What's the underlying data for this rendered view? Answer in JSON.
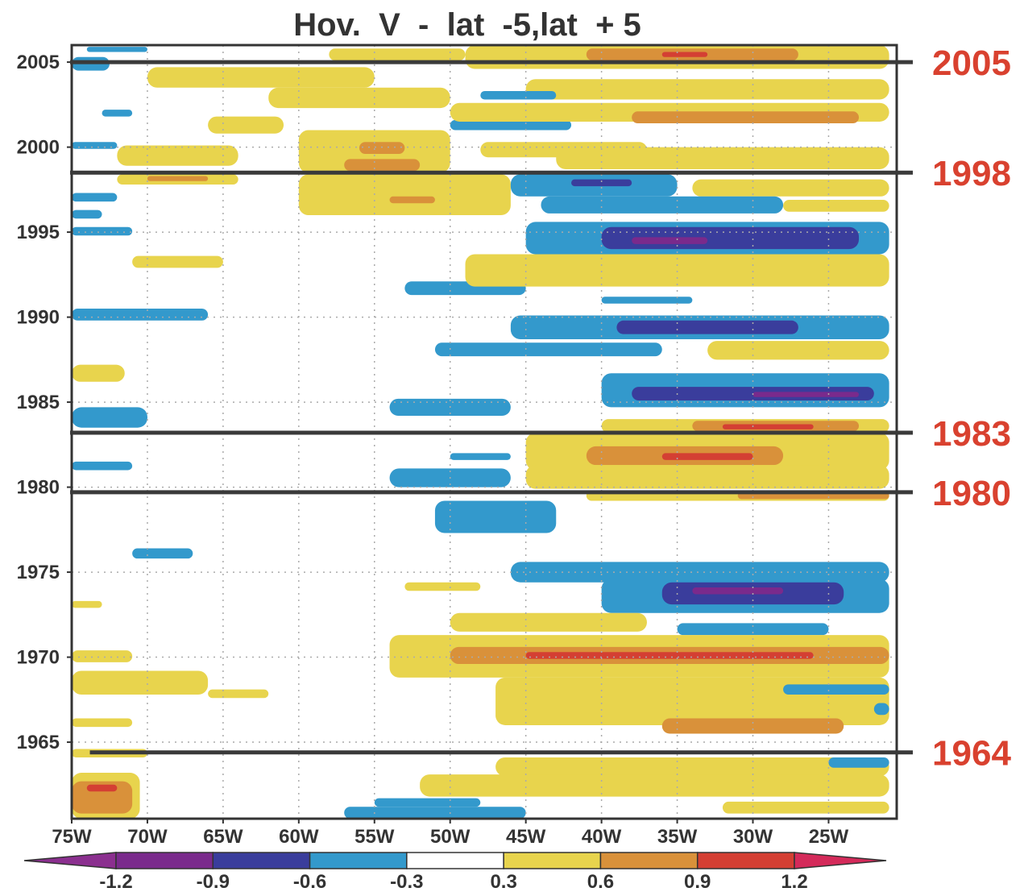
{
  "chart_data": {
    "type": "heatmap",
    "title": "Hov.  V  -  lat  -5,lat  + 5",
    "xlabel": "",
    "ylabel": "",
    "x_range": [
      -75,
      -20.5
    ],
    "y_range": [
      1960.5,
      2006.0
    ],
    "x_ticks": [
      -75,
      -70,
      -65,
      -60,
      -55,
      -50,
      -45,
      -40,
      -35,
      -30,
      -25
    ],
    "x_tick_labels": [
      "75W",
      "70W",
      "65W",
      "60W",
      "55W",
      "50W",
      "45W",
      "40W",
      "35W",
      "30W",
      "25W"
    ],
    "y_ticks": [
      2005,
      2000,
      1995,
      1990,
      1985,
      1980,
      1975,
      1970,
      1965
    ],
    "y_tick_labels": [
      "2005",
      "2000",
      "1995",
      "1990",
      "1985",
      "1980",
      "1975",
      "1970",
      "1965"
    ],
    "grid": true,
    "colorbar": {
      "orientation": "horizontal",
      "placement": "bottom",
      "levels": [
        -1.2,
        -0.9,
        -0.6,
        -0.3,
        0.3,
        0.6,
        0.9,
        1.2
      ],
      "level_labels": [
        "-1.2",
        "-0.9",
        "-0.6",
        "-0.3",
        "0.3",
        "0.6",
        "0.9",
        "1.2"
      ],
      "colors": [
        "#8b2f8f",
        "#7a2a8c",
        "#3a3d9c",
        "#3399cc",
        "#ffffff",
        "#e8d44d",
        "#d9913a",
        "#d43f33",
        "#d42a5a"
      ]
    },
    "marker_years": [
      {
        "year": 2005,
        "label": "2005"
      },
      {
        "year": 1998.5,
        "label": "1998"
      },
      {
        "year": 1983.2,
        "label": "1983"
      },
      {
        "year": 1979.7,
        "label": "1980"
      },
      {
        "year": 1964.4,
        "label": "1964"
      }
    ],
    "marker_color": "#d9412f",
    "regions": [
      {
        "x": [
          -74,
          -70
        ],
        "y": [
          2005.6,
          2005.9
        ],
        "v": -0.45
      },
      {
        "x": [
          -75,
          -72.5
        ],
        "y": [
          2004.5,
          2005.3
        ],
        "v": -0.4
      },
      {
        "x": [
          -58,
          -49
        ],
        "y": [
          2005.1,
          2005.8
        ],
        "v": 0.45
      },
      {
        "x": [
          -49,
          -21
        ],
        "y": [
          2004.6,
          2006.0
        ],
        "v": 0.45
      },
      {
        "x": [
          -41,
          -27
        ],
        "y": [
          2005.1,
          2005.8
        ],
        "v": 0.75
      },
      {
        "x": [
          -36,
          -33
        ],
        "y": [
          2005.3,
          2005.6
        ],
        "v": 1.0
      },
      {
        "x": [
          -70,
          -55
        ],
        "y": [
          2003.5,
          2004.7
        ],
        "v": 0.45
      },
      {
        "x": [
          -62,
          -50
        ],
        "y": [
          2002.3,
          2003.5
        ],
        "v": 0.45
      },
      {
        "x": [
          -45,
          -21
        ],
        "y": [
          2002.8,
          2004.0
        ],
        "v": 0.45
      },
      {
        "x": [
          -48,
          -43
        ],
        "y": [
          2002.8,
          2003.3
        ],
        "v": -0.45
      },
      {
        "x": [
          -73,
          -71
        ],
        "y": [
          2001.8,
          2002.2
        ],
        "v": -0.45
      },
      {
        "x": [
          -66,
          -61
        ],
        "y": [
          2000.8,
          2001.8
        ],
        "v": 0.45
      },
      {
        "x": [
          -50,
          -42
        ],
        "y": [
          2001.0,
          2001.6
        ],
        "v": -0.45
      },
      {
        "x": [
          -50,
          -21
        ],
        "y": [
          2001.5,
          2002.6
        ],
        "v": 0.45
      },
      {
        "x": [
          -38,
          -23
        ],
        "y": [
          2001.4,
          2002.1
        ],
        "v": 0.75
      },
      {
        "x": [
          -75,
          -72
        ],
        "y": [
          1999.9,
          2000.3
        ],
        "v": -0.45
      },
      {
        "x": [
          -72,
          -64
        ],
        "y": [
          1998.9,
          2000.1
        ],
        "v": 0.45
      },
      {
        "x": [
          -60,
          -50
        ],
        "y": [
          1998.5,
          2001.0
        ],
        "v": 0.45
      },
      {
        "x": [
          -56,
          -53
        ],
        "y": [
          1999.6,
          2000.3
        ],
        "v": 0.75
      },
      {
        "x": [
          -57,
          -52
        ],
        "y": [
          1998.6,
          1999.3
        ],
        "v": 0.75
      },
      {
        "x": [
          -48,
          -37
        ],
        "y": [
          1999.4,
          2000.3
        ],
        "v": 0.45
      },
      {
        "x": [
          -43,
          -21
        ],
        "y": [
          1998.7,
          2000.0
        ],
        "v": 0.45
      },
      {
        "x": [
          -72,
          -64
        ],
        "y": [
          1997.8,
          1998.4
        ],
        "v": 0.45
      },
      {
        "x": [
          -70,
          -66
        ],
        "y": [
          1998.0,
          1998.3
        ],
        "v": 0.75
      },
      {
        "x": [
          -60,
          -46
        ],
        "y": [
          1996.0,
          1998.4
        ],
        "v": 0.45
      },
      {
        "x": [
          -54,
          -51
        ],
        "y": [
          1996.7,
          1997.1
        ],
        "v": 0.75
      },
      {
        "x": [
          -75,
          -72
        ],
        "y": [
          1996.8,
          1997.3
        ],
        "v": -0.45
      },
      {
        "x": [
          -75,
          -73
        ],
        "y": [
          1995.8,
          1996.3
        ],
        "v": -0.45
      },
      {
        "x": [
          -75,
          -71
        ],
        "y": [
          1994.8,
          1995.3
        ],
        "v": -0.45
      },
      {
        "x": [
          -46,
          -35
        ],
        "y": [
          1997.1,
          1998.4
        ],
        "v": -0.45
      },
      {
        "x": [
          -42,
          -38
        ],
        "y": [
          1997.7,
          1998.1
        ],
        "v": -0.8
      },
      {
        "x": [
          -34,
          -21
        ],
        "y": [
          1997.1,
          1998.1
        ],
        "v": 0.45
      },
      {
        "x": [
          -44,
          -28
        ],
        "y": [
          1996.1,
          1997.1
        ],
        "v": -0.45
      },
      {
        "x": [
          -28,
          -21
        ],
        "y": [
          1996.2,
          1996.9
        ],
        "v": 0.45
      },
      {
        "x": [
          -45,
          -21
        ],
        "y": [
          1993.7,
          1995.6
        ],
        "v": -0.45
      },
      {
        "x": [
          -40,
          -23
        ],
        "y": [
          1994.0,
          1995.3
        ],
        "v": -0.8
      },
      {
        "x": [
          -38,
          -33
        ],
        "y": [
          1994.3,
          1994.7
        ],
        "v": -1.0
      },
      {
        "x": [
          -71,
          -65
        ],
        "y": [
          1992.9,
          1993.6
        ],
        "v": 0.45
      },
      {
        "x": [
          -53,
          -45
        ],
        "y": [
          1991.3,
          1992.1
        ],
        "v": -0.45
      },
      {
        "x": [
          -49,
          -21
        ],
        "y": [
          1991.8,
          1993.7
        ],
        "v": 0.45
      },
      {
        "x": [
          -40,
          -34
        ],
        "y": [
          1990.8,
          1991.2
        ],
        "v": -0.45
      },
      {
        "x": [
          -75,
          -66
        ],
        "y": [
          1989.8,
          1990.5
        ],
        "v": -0.45
      },
      {
        "x": [
          -46,
          -21
        ],
        "y": [
          1988.7,
          1990.1
        ],
        "v": -0.45
      },
      {
        "x": [
          -39,
          -27
        ],
        "y": [
          1989.0,
          1989.8
        ],
        "v": -0.8
      },
      {
        "x": [
          -51,
          -36
        ],
        "y": [
          1987.7,
          1988.5
        ],
        "v": -0.45
      },
      {
        "x": [
          -33,
          -21
        ],
        "y": [
          1987.5,
          1988.6
        ],
        "v": 0.45
      },
      {
        "x": [
          -75,
          -71.5
        ],
        "y": [
          1986.2,
          1987.2
        ],
        "v": 0.45
      },
      {
        "x": [
          -40,
          -21
        ],
        "y": [
          1984.7,
          1986.7
        ],
        "v": -0.45
      },
      {
        "x": [
          -38,
          -22
        ],
        "y": [
          1985.1,
          1985.9
        ],
        "v": -0.8
      },
      {
        "x": [
          -30,
          -23
        ],
        "y": [
          1985.3,
          1985.6
        ],
        "v": -1.0
      },
      {
        "x": [
          -54,
          -46
        ],
        "y": [
          1984.2,
          1985.2
        ],
        "v": -0.45
      },
      {
        "x": [
          -75,
          -70
        ],
        "y": [
          1983.5,
          1984.7
        ],
        "v": -0.45
      },
      {
        "x": [
          -40,
          -21
        ],
        "y": [
          1983.2,
          1984.0
        ],
        "v": 0.45
      },
      {
        "x": [
          -34,
          -23
        ],
        "y": [
          1983.3,
          1983.9
        ],
        "v": 0.75
      },
      {
        "x": [
          -32,
          -26
        ],
        "y": [
          1983.4,
          1983.7
        ],
        "v": 0.95
      },
      {
        "x": [
          -45,
          -21
        ],
        "y": [
          1981.0,
          1983.2
        ],
        "v": 0.45
      },
      {
        "x": [
          -41,
          -28
        ],
        "y": [
          1981.3,
          1982.4
        ],
        "v": 0.75
      },
      {
        "x": [
          -36,
          -30
        ],
        "y": [
          1981.6,
          1982.0
        ],
        "v": 0.95
      },
      {
        "x": [
          -75,
          -71
        ],
        "y": [
          1981.0,
          1981.5
        ],
        "v": -0.45
      },
      {
        "x": [
          -50,
          -46
        ],
        "y": [
          1981.6,
          1982.0
        ],
        "v": -0.45
      },
      {
        "x": [
          -54,
          -46
        ],
        "y": [
          1980.0,
          1981.1
        ],
        "v": -0.45
      },
      {
        "x": [
          -45,
          -21
        ],
        "y": [
          1979.9,
          1981.3
        ],
        "v": 0.45
      },
      {
        "x": [
          -41,
          -21
        ],
        "y": [
          1979.2,
          1979.8
        ],
        "v": 0.45
      },
      {
        "x": [
          -31,
          -21
        ],
        "y": [
          1979.3,
          1979.7
        ],
        "v": 0.75
      },
      {
        "x": [
          -51,
          -43
        ],
        "y": [
          1977.3,
          1979.2
        ],
        "v": -0.45
      },
      {
        "x": [
          -71,
          -67
        ],
        "y": [
          1975.8,
          1976.4
        ],
        "v": -0.45
      },
      {
        "x": [
          -46,
          -21
        ],
        "y": [
          1974.4,
          1975.6
        ],
        "v": -0.45
      },
      {
        "x": [
          -40,
          -21
        ],
        "y": [
          1972.6,
          1974.6
        ],
        "v": -0.45
      },
      {
        "x": [
          -36,
          -24
        ],
        "y": [
          1973.1,
          1974.4
        ],
        "v": -0.8
      },
      {
        "x": [
          -34,
          -28
        ],
        "y": [
          1973.7,
          1974.1
        ],
        "v": -1.0
      },
      {
        "x": [
          -53,
          -48
        ],
        "y": [
          1973.9,
          1974.4
        ],
        "v": 0.45
      },
      {
        "x": [
          -75,
          -73
        ],
        "y": [
          1972.9,
          1973.3
        ],
        "v": 0.45
      },
      {
        "x": [
          -50,
          -37
        ],
        "y": [
          1971.5,
          1972.6
        ],
        "v": 0.45
      },
      {
        "x": [
          -35,
          -25
        ],
        "y": [
          1971.3,
          1972.0
        ],
        "v": -0.45
      },
      {
        "x": [
          -75,
          -71
        ],
        "y": [
          1969.7,
          1970.4
        ],
        "v": 0.45
      },
      {
        "x": [
          -54,
          -21
        ],
        "y": [
          1968.8,
          1971.3
        ],
        "v": 0.45
      },
      {
        "x": [
          -50,
          -21
        ],
        "y": [
          1969.6,
          1970.6
        ],
        "v": 0.75
      },
      {
        "x": [
          -45,
          -26
        ],
        "y": [
          1969.9,
          1970.3
        ],
        "v": 0.95
      },
      {
        "x": [
          -75,
          -66
        ],
        "y": [
          1967.8,
          1969.2
        ],
        "v": 0.45
      },
      {
        "x": [
          -66,
          -62
        ],
        "y": [
          1967.6,
          1968.1
        ],
        "v": 0.45
      },
      {
        "x": [
          -47,
          -21
        ],
        "y": [
          1966.0,
          1968.8
        ],
        "v": 0.45
      },
      {
        "x": [
          -28,
          -21
        ],
        "y": [
          1967.8,
          1968.4
        ],
        "v": -0.45
      },
      {
        "x": [
          -36,
          -24
        ],
        "y": [
          1965.5,
          1966.4
        ],
        "v": 0.75
      },
      {
        "x": [
          -22,
          -21
        ],
        "y": [
          1966.6,
          1967.3
        ],
        "v": -0.45
      },
      {
        "x": [
          -75,
          -71
        ],
        "y": [
          1965.9,
          1966.4
        ],
        "v": 0.45
      },
      {
        "x": [
          -75,
          -70
        ],
        "y": [
          1964.1,
          1964.6
        ],
        "v": 0.45
      },
      {
        "x": [
          -47,
          -21
        ],
        "y": [
          1963.0,
          1964.1
        ],
        "v": 0.45
      },
      {
        "x": [
          -25,
          -21
        ],
        "y": [
          1963.5,
          1964.1
        ],
        "v": -0.45
      },
      {
        "x": [
          -52,
          -21
        ],
        "y": [
          1961.8,
          1963.1
        ],
        "v": 0.45
      },
      {
        "x": [
          -75,
          -70.5
        ],
        "y": [
          1960.5,
          1963.2
        ],
        "v": 0.45
      },
      {
        "x": [
          -75,
          -71
        ],
        "y": [
          1960.8,
          1962.7
        ],
        "v": 0.75
      },
      {
        "x": [
          -74,
          -72
        ],
        "y": [
          1962.1,
          1962.5
        ],
        "v": 0.95
      },
      {
        "x": [
          -57,
          -45
        ],
        "y": [
          1960.5,
          1961.2
        ],
        "v": -0.45
      },
      {
        "x": [
          -55,
          -48
        ],
        "y": [
          1961.2,
          1961.7
        ],
        "v": -0.45
      },
      {
        "x": [
          -32,
          -21
        ],
        "y": [
          1960.8,
          1961.5
        ],
        "v": 0.45
      }
    ]
  }
}
